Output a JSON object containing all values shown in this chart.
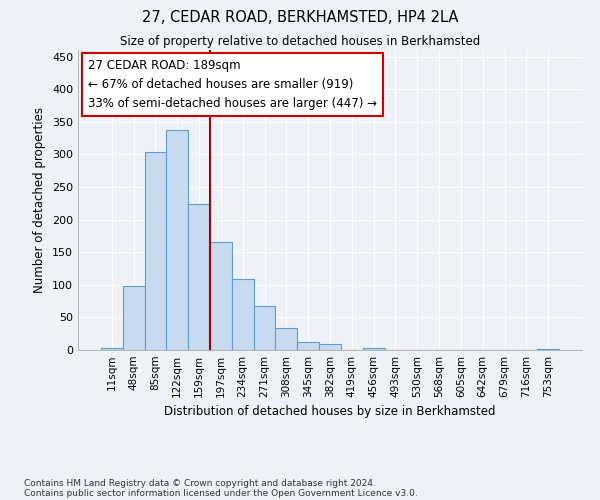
{
  "title1": "27, CEDAR ROAD, BERKHAMSTED, HP4 2LA",
  "title2": "Size of property relative to detached houses in Berkhamsted",
  "xlabel": "Distribution of detached houses by size in Berkhamsted",
  "ylabel": "Number of detached properties",
  "bar_labels": [
    "11sqm",
    "48sqm",
    "85sqm",
    "122sqm",
    "159sqm",
    "197sqm",
    "234sqm",
    "271sqm",
    "308sqm",
    "345sqm",
    "382sqm",
    "419sqm",
    "456sqm",
    "493sqm",
    "530sqm",
    "568sqm",
    "605sqm",
    "642sqm",
    "679sqm",
    "716sqm",
    "753sqm"
  ],
  "bar_values": [
    3,
    98,
    303,
    337,
    224,
    165,
    109,
    68,
    33,
    13,
    9,
    0,
    3,
    0,
    0,
    0,
    0,
    0,
    0,
    0,
    2
  ],
  "bar_color": "#c8daf0",
  "bar_edge_color": "#5a9fd4",
  "vline_color": "#aa0000",
  "annotation_title": "27 CEDAR ROAD: 189sqm",
  "annotation_line1": "← 67% of detached houses are smaller (919)",
  "annotation_line2": "33% of semi-detached houses are larger (447) →",
  "annotation_box_color": "#ffffff",
  "annotation_box_edge_color": "#cc0000",
  "ylim": [
    0,
    460
  ],
  "yticks": [
    0,
    50,
    100,
    150,
    200,
    250,
    300,
    350,
    400,
    450
  ],
  "footnote1": "Contains HM Land Registry data © Crown copyright and database right 2024.",
  "footnote2": "Contains public sector information licensed under the Open Government Licence v3.0.",
  "bg_color": "#eef2f8",
  "plot_bg_color": "#eef2f8",
  "grid_color": "#ffffff"
}
